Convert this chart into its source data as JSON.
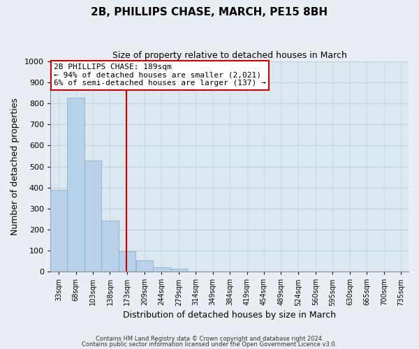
{
  "title": "2B, PHILLIPS CHASE, MARCH, PE15 8BH",
  "subtitle": "Size of property relative to detached houses in March",
  "xlabel": "Distribution of detached houses by size in March",
  "ylabel": "Number of detached properties",
  "bar_values": [
    390,
    828,
    530,
    242,
    97,
    52,
    22,
    14,
    0,
    0,
    0,
    0,
    0,
    0,
    0,
    0,
    0,
    0,
    0,
    0,
    0
  ],
  "bin_labels": [
    "33sqm",
    "68sqm",
    "103sqm",
    "138sqm",
    "173sqm",
    "209sqm",
    "244sqm",
    "279sqm",
    "314sqm",
    "349sqm",
    "384sqm",
    "419sqm",
    "454sqm",
    "489sqm",
    "524sqm",
    "560sqm",
    "595sqm",
    "630sqm",
    "665sqm",
    "700sqm",
    "735sqm"
  ],
  "bin_edges": [
    33,
    68,
    103,
    138,
    173,
    209,
    244,
    279,
    314,
    349,
    384,
    419,
    454,
    489,
    524,
    560,
    595,
    630,
    665,
    700,
    735
  ],
  "bin_width": 35,
  "bar_color": "#b8d0e8",
  "bar_edge_color": "#8ab0d0",
  "property_line_x": 189,
  "property_line_color": "#cc0000",
  "ylim": [
    0,
    1000
  ],
  "yticks": [
    0,
    100,
    200,
    300,
    400,
    500,
    600,
    700,
    800,
    900,
    1000
  ],
  "annotation_title": "2B PHILLIPS CHASE: 189sqm",
  "annotation_line1": "← 94% of detached houses are smaller (2,021)",
  "annotation_line2": "6% of semi-detached houses are larger (137) →",
  "annotation_box_color": "#ffffff",
  "annotation_box_edge": "#cc0000",
  "footer1": "Contains HM Land Registry data © Crown copyright and database right 2024.",
  "footer2": "Contains public sector information licensed under the Open Government Licence v3.0.",
  "background_color": "#e8eef4",
  "plot_bg_color": "#dce8f0",
  "grid_color": "#c0d0df"
}
